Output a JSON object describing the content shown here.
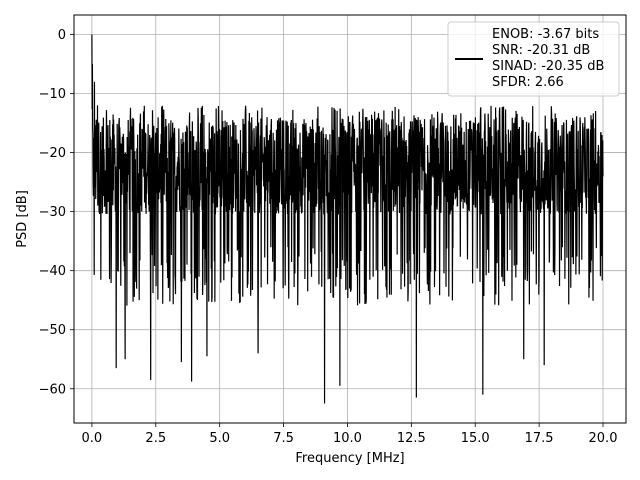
{
  "chart_data": {
    "type": "line",
    "xlabel": "Frequency [MHz]",
    "ylabel": "PSD [dB]",
    "xlim": [
      -0.7,
      20.9
    ],
    "ylim": [
      -65.8,
      3.3
    ],
    "xticks": [
      0.0,
      2.5,
      5.0,
      7.5,
      10.0,
      12.5,
      15.0,
      17.5,
      20.0
    ],
    "xtick_labels": [
      "0.0",
      "2.5",
      "5.0",
      "7.5",
      "10.0",
      "12.5",
      "15.0",
      "17.5",
      "20.0"
    ],
    "yticks": [
      0,
      -10,
      -20,
      -30,
      -40,
      -50,
      -60
    ],
    "ytick_labels": [
      "0",
      "−10",
      "−20",
      "−30",
      "−40",
      "−50",
      "−60"
    ],
    "grid": true,
    "legend_position": "upper-right",
    "legend_lines": [
      "ENOB: -3.67 bits",
      "SNR: -20.31 dB",
      "SINAD: -20.35 dB",
      "SFDR: 2.66"
    ],
    "series": [
      {
        "color": "#000000",
        "x_range": [
          0,
          20
        ],
        "n_points": 2000,
        "noise_floor_band_db": [
          -36,
          -14
        ],
        "peak": {
          "x": 0.0,
          "y": 0
        },
        "early_spurs": [
          {
            "x": 0.02,
            "y": -5
          },
          {
            "x": 0.1,
            "y": -8
          },
          {
            "x": 0.22,
            "y": -12
          }
        ],
        "deep_nulls": [
          {
            "x": 0.95,
            "y": -56.5
          },
          {
            "x": 1.3,
            "y": -55
          },
          {
            "x": 2.3,
            "y": -58.5
          },
          {
            "x": 3.5,
            "y": -55.5
          },
          {
            "x": 3.9,
            "y": -58.8
          },
          {
            "x": 4.5,
            "y": -54.5
          },
          {
            "x": 6.5,
            "y": -54
          },
          {
            "x": 9.1,
            "y": -62.5
          },
          {
            "x": 9.7,
            "y": -59.5
          },
          {
            "x": 12.7,
            "y": -61.5
          },
          {
            "x": 15.3,
            "y": -61
          },
          {
            "x": 16.9,
            "y": -55
          },
          {
            "x": 17.7,
            "y": -56
          }
        ]
      }
    ]
  }
}
